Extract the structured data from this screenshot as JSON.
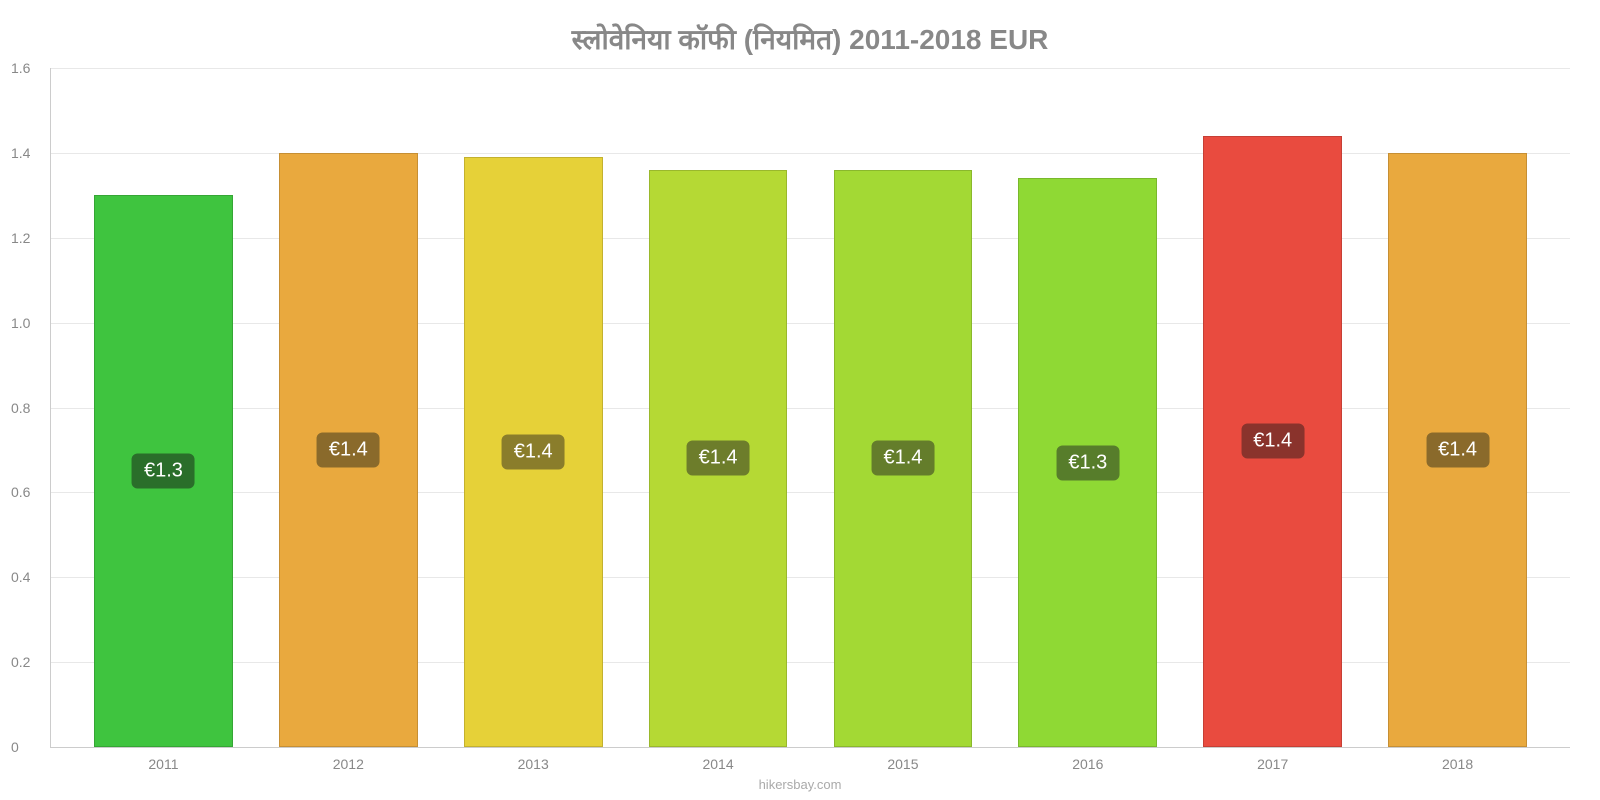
{
  "chart": {
    "type": "bar",
    "title": "स्लोवेनिया कॉफी (नियमित) 2011-2018 EUR",
    "title_fontsize": 28,
    "title_color": "#888888",
    "background_color": "#ffffff",
    "grid_color": "#e8e8e8",
    "axis_color": "#cccccc",
    "label_color": "#888888",
    "label_fontsize": 14,
    "ylim": [
      0,
      1.6
    ],
    "ytick_step": 0.2,
    "yticks": [
      {
        "value": 0,
        "label": "0"
      },
      {
        "value": 0.2,
        "label": "0.2"
      },
      {
        "value": 0.4,
        "label": "0.4"
      },
      {
        "value": 0.6,
        "label": "0.6"
      },
      {
        "value": 0.8,
        "label": "0.8"
      },
      {
        "value": 1.0,
        "label": "1.0"
      },
      {
        "value": 1.2,
        "label": "1.2"
      },
      {
        "value": 1.4,
        "label": "1.4"
      },
      {
        "value": 1.6,
        "label": "1.6"
      }
    ],
    "bar_width": 0.75,
    "value_label_fontsize": 20,
    "value_label_text_color": "#ffffff",
    "data": [
      {
        "category": "2011",
        "value": 1.3,
        "display": "€1.3",
        "color": "#3fc43f",
        "badge_bg": "#2a6e2a"
      },
      {
        "category": "2012",
        "value": 1.4,
        "display": "€1.4",
        "color": "#e9a93e",
        "badge_bg": "#8a6a2b"
      },
      {
        "category": "2013",
        "value": 1.39,
        "display": "€1.4",
        "color": "#e6d138",
        "badge_bg": "#8a7d2b"
      },
      {
        "category": "2014",
        "value": 1.36,
        "display": "€1.4",
        "color": "#b5d934",
        "badge_bg": "#6d7d2b"
      },
      {
        "category": "2015",
        "value": 1.36,
        "display": "€1.4",
        "color": "#a3d934",
        "badge_bg": "#647d2b"
      },
      {
        "category": "2016",
        "value": 1.34,
        "display": "€1.3",
        "color": "#8fd934",
        "badge_bg": "#577d2b"
      },
      {
        "category": "2017",
        "value": 1.44,
        "display": "€1.4",
        "color": "#e94b3f",
        "badge_bg": "#8a332c"
      },
      {
        "category": "2018",
        "value": 1.4,
        "display": "€1.4",
        "color": "#e9a93e",
        "badge_bg": "#8a6a2b"
      }
    ],
    "attribution": "hikersbay.com"
  }
}
